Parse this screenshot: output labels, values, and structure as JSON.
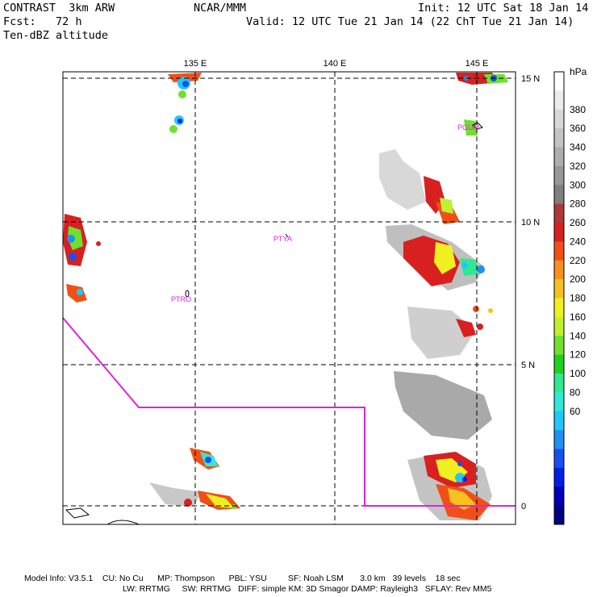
{
  "header": {
    "title": "CONTRAST  3km ARW",
    "source": "NCAR/MMM",
    "init": "Init: 12 UTC Sat 18 Jan 14",
    "fcst": "Fcst:   72 h",
    "valid": "Valid: 12 UTC Tue 21 Jan 14 (22 ChT Tue 21 Jan 14)",
    "field": "Ten-dBZ altitude"
  },
  "map": {
    "lon_labels": [
      "135 E",
      "140 E",
      "145 E"
    ],
    "lat_labels": [
      "15 N",
      "10 N",
      "5 N",
      "0"
    ],
    "stations": [
      "PGUM",
      "PTYA",
      "PTRO"
    ]
  },
  "colorbar": {
    "unit": "hPa",
    "labels": [
      "380",
      "360",
      "340",
      "320",
      "300",
      "280",
      "260",
      "240",
      "220",
      "200",
      "180",
      "160",
      "140",
      "120",
      "100",
      "80",
      "60"
    ],
    "colors": [
      "#ffffff",
      "#ececec",
      "#d8d8d8",
      "#c4c4c4",
      "#aeaeae",
      "#989898",
      "#808080",
      "#b03838",
      "#d82020",
      "#f05018",
      "#f89020",
      "#f8c020",
      "#f0f020",
      "#c0f030",
      "#70e030",
      "#20d020",
      "#30e890",
      "#30e8d8",
      "#20c8f8",
      "#2090f0",
      "#1850f0",
      "#0020e8",
      "#0000b8",
      "#000080"
    ]
  },
  "footer": {
    "line1": "Model Info: V3.5.1    CU: No Cu      MP: Thompson      PBL: YSU         SF: Noah LSM       3.0 km   39 levels    18 sec",
    "line2": "LW: RRTMG     SW: RRTMG   DIFF: simple KM: 3D Smagor DAMP: Rayleigh3   SFLAY: Rev MM5"
  }
}
